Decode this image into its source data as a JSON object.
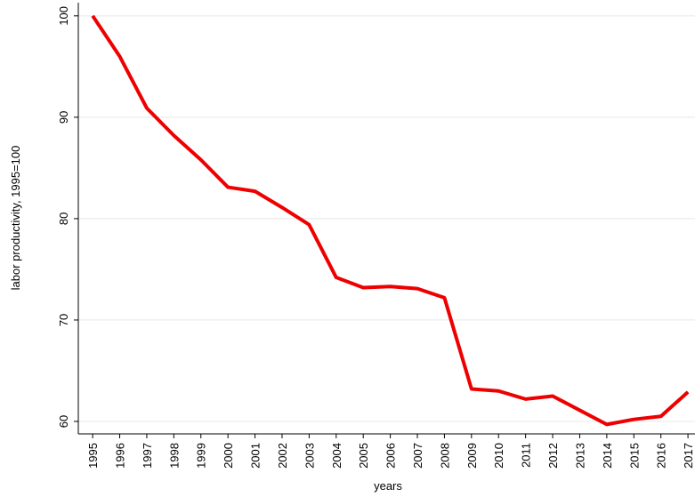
{
  "chart_data": {
    "type": "line",
    "x_label": "years",
    "y_label": "labor productivity, 1995=100",
    "x": [
      1995,
      1996,
      1997,
      1998,
      1999,
      2000,
      2001,
      2002,
      2003,
      2004,
      2005,
      2006,
      2007,
      2008,
      2009,
      2010,
      2011,
      2012,
      2013,
      2014,
      2015,
      2016,
      2017
    ],
    "values": [
      100,
      96,
      90.9,
      88.2,
      85.8,
      83.1,
      82.7,
      81.1,
      79.4,
      74.2,
      73.2,
      73.3,
      73.1,
      72.2,
      63.2,
      63.0,
      62.2,
      62.5,
      61.1,
      59.7,
      60.2,
      60.5,
      62.9
    ],
    "color": "#ee0000",
    "xlim": [
      1994.47,
      2017.26
    ],
    "xticks": [
      1995,
      1996,
      1997,
      1998,
      1999,
      2000,
      2001,
      2002,
      2003,
      2004,
      2005,
      2006,
      2007,
      2008,
      2009,
      2010,
      2011,
      2012,
      2013,
      2014,
      2015,
      2016,
      2017
    ],
    "ylim": [
      58.77,
      101.3
    ],
    "yticks": [
      60,
      70,
      80,
      90,
      100
    ],
    "grid": true
  }
}
